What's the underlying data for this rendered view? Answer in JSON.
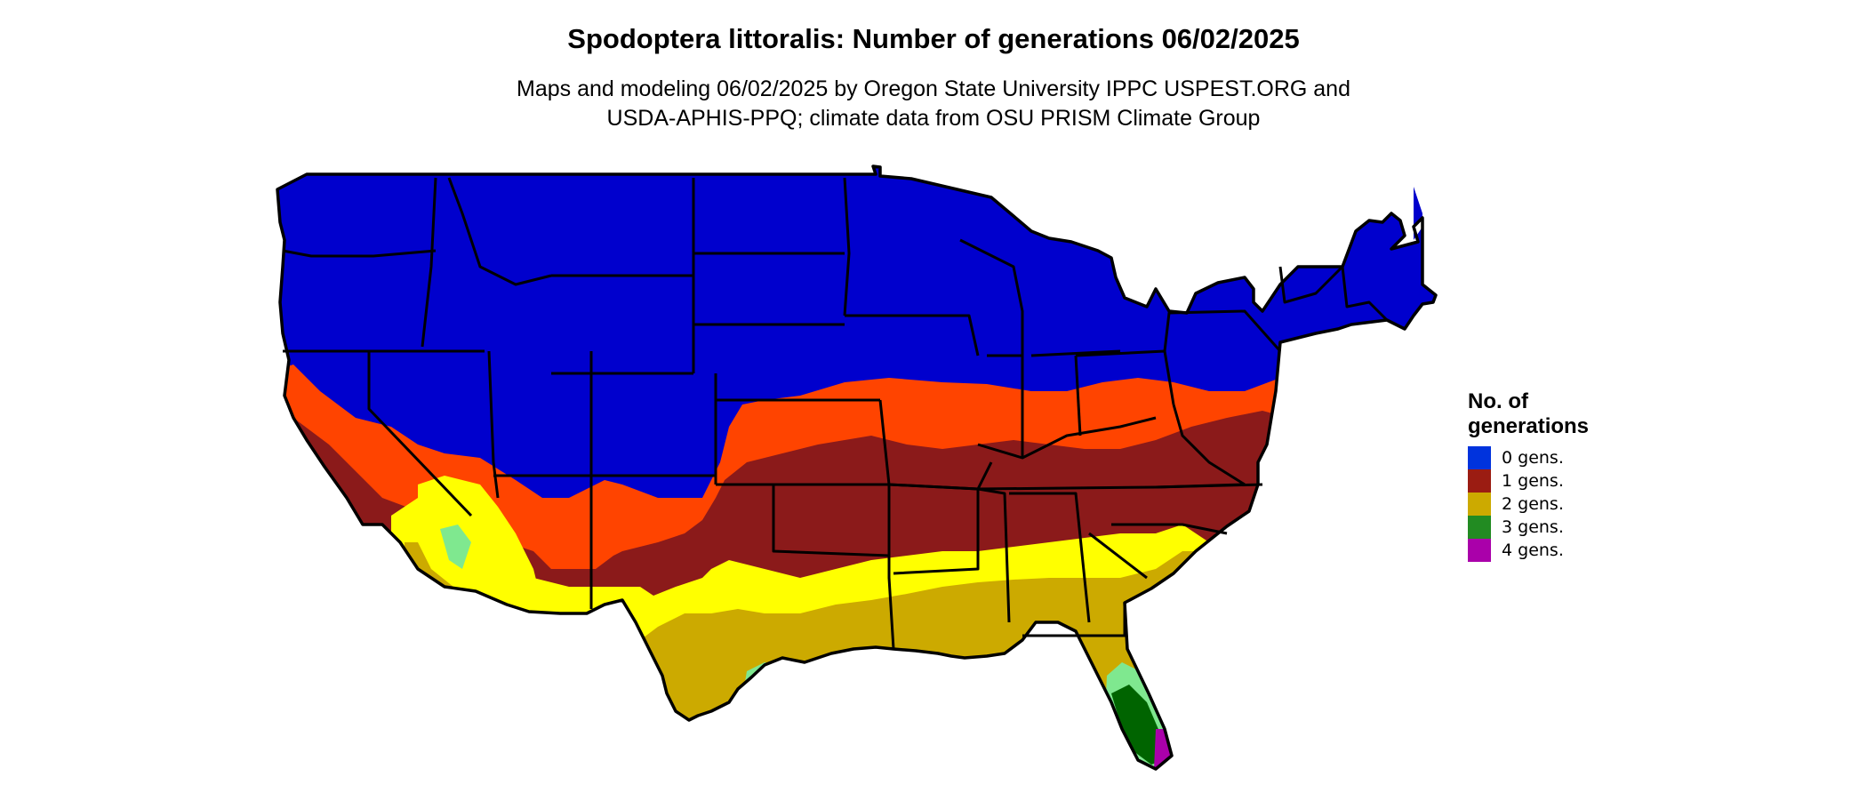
{
  "map": {
    "title": "Spodoptera littoralis: Number of generations 06/02/2025",
    "subtitle_line1": "Maps and modeling 06/02/2025 by Oregon State University IPPC USPEST.ORG and",
    "subtitle_line2": "USDA-APHIS-PPQ; climate data from OSU PRISM Climate Group",
    "region": "Contiguous United States",
    "colors": {
      "zero": "#0000cd",
      "zero_legend": "#0033dd",
      "one_light": "#ff4400",
      "one": "#8b1a1a",
      "two": "#ccaa00",
      "two_light": "#ffff00",
      "three_light": "#7fe88f",
      "three": "#006400",
      "three_legend": "#228b22",
      "four": "#aa00aa",
      "border": "#000000"
    }
  },
  "legend": {
    "title_line1": "No. of",
    "title_line2": "generations",
    "items": [
      {
        "label": "0 gens.",
        "color": "#0033dd"
      },
      {
        "label": "1 gens.",
        "color": "#9b1c12"
      },
      {
        "label": "2 gens.",
        "color": "#ccaa00"
      },
      {
        "label": "3 gens.",
        "color": "#228b22"
      },
      {
        "label": "4 gens.",
        "color": "#aa00aa"
      }
    ]
  }
}
